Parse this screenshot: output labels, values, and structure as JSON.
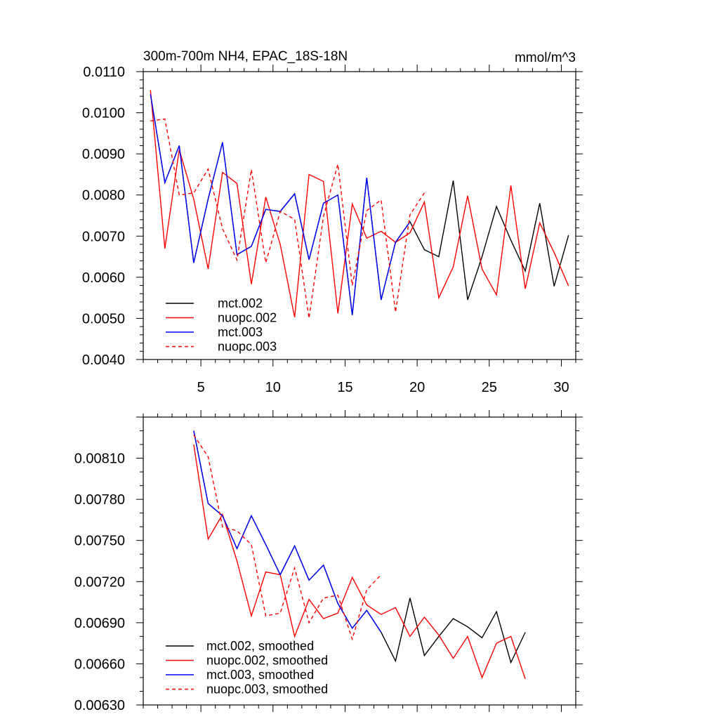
{
  "chart_data": [
    {
      "type": "line",
      "title": "300m-700m NH4, EPAC_18S-18N",
      "units": "mmol/m^3",
      "xlabel": "",
      "ylabel": "",
      "xlim": [
        1,
        31
      ],
      "ylim": [
        0.004,
        0.011
      ],
      "x_major_ticks": [
        5,
        10,
        15,
        20,
        25,
        30
      ],
      "y_major_ticks": [
        0.004,
        0.005,
        0.006,
        0.007,
        0.008,
        0.009,
        0.01,
        0.011
      ],
      "y_tick_labels": [
        "0.0040",
        "0.0050",
        "0.0060",
        "0.0070",
        "0.0080",
        "0.0090",
        "0.0100",
        "0.0110"
      ],
      "x_tick_labels": [
        "5",
        "10",
        "15",
        "20",
        "25",
        "30"
      ],
      "legend_position": "bottom-left",
      "series": [
        {
          "name": "mct.002",
          "color": "#000000",
          "dash": "solid",
          "x": [
            1.5,
            2.5,
            3.5,
            4.5,
            5.5,
            6.5,
            7.5,
            8.5,
            9.5,
            10.5,
            11.5,
            12.5,
            13.5,
            14.5,
            15.5,
            16.5,
            17.5,
            18.5,
            19.5,
            20.5,
            21.5,
            22.5,
            23.5,
            24.5,
            25.5,
            26.5,
            27.5,
            28.5,
            29.5,
            30.5
          ],
          "values": [
            0.01045,
            0.0083,
            0.0092,
            0.00635,
            0.0079,
            0.00928,
            0.00655,
            0.00675,
            0.00765,
            0.0076,
            0.00803,
            0.00643,
            0.0078,
            0.008,
            0.00508,
            0.00842,
            0.00545,
            0.00685,
            0.00735,
            0.00667,
            0.0065,
            0.00835,
            0.00545,
            0.0065,
            0.00772,
            0.0069,
            0.00615,
            0.0078,
            0.00578,
            0.00702
          ]
        },
        {
          "name": "nuopc.002",
          "color": "#ff0000",
          "dash": "solid",
          "x": [
            1.5,
            2.5,
            3.5,
            4.5,
            5.5,
            6.5,
            7.5,
            8.5,
            9.5,
            10.5,
            11.5,
            12.5,
            13.5,
            14.5,
            15.5,
            16.5,
            17.5,
            18.5,
            19.5,
            20.5,
            21.5,
            22.5,
            23.5,
            24.5,
            25.5,
            26.5,
            27.5,
            28.5,
            29.5,
            30.5
          ],
          "values": [
            0.01055,
            0.0067,
            0.0091,
            0.0079,
            0.0062,
            0.00855,
            0.00828,
            0.00583,
            0.00795,
            0.0068,
            0.00503,
            0.0085,
            0.00833,
            0.00512,
            0.00778,
            0.00695,
            0.00712,
            0.00685,
            0.00708,
            0.00783,
            0.0055,
            0.00625,
            0.00798,
            0.0062,
            0.00557,
            0.00823,
            0.00572,
            0.00732,
            0.0066,
            0.00579
          ]
        },
        {
          "name": "mct.003",
          "color": "#0000ff",
          "dash": "solid",
          "x": [
            1.5,
            2.5,
            3.5,
            4.5,
            5.5,
            6.5,
            7.5,
            8.5,
            9.5,
            10.5,
            11.5,
            12.5,
            13.5,
            14.5,
            15.5,
            16.5,
            17.5,
            18.5,
            19.5
          ],
          "values": [
            0.01045,
            0.0083,
            0.0092,
            0.00635,
            0.0079,
            0.00928,
            0.00655,
            0.00675,
            0.00765,
            0.0076,
            0.00803,
            0.00643,
            0.0078,
            0.008,
            0.00508,
            0.00842,
            0.00545,
            0.00685,
            0.00735
          ]
        },
        {
          "name": "nuopc.003",
          "color": "#ff0000",
          "dash": "dashed",
          "x": [
            1.5,
            2.5,
            3.5,
            4.5,
            5.5,
            6.5,
            7.5,
            8.5,
            9.5,
            10.5,
            11.5,
            12.5,
            13.5,
            14.5,
            15.5,
            16.5,
            17.5,
            18.5,
            19.5,
            20.5
          ],
          "values": [
            0.0098,
            0.00985,
            0.008,
            0.00805,
            0.00863,
            0.00718,
            0.00642,
            0.00862,
            0.00635,
            0.0076,
            0.00741,
            0.005,
            0.00748,
            0.00875,
            0.0058,
            0.00762,
            0.00788,
            0.00515,
            0.00752,
            0.00805
          ]
        }
      ]
    },
    {
      "type": "line",
      "title": "",
      "xlabel": "",
      "ylabel": "",
      "xlim": [
        1,
        31
      ],
      "ylim": [
        0.0063,
        0.0084
      ],
      "x_major_ticks": [
        5,
        10,
        15,
        20,
        25,
        30
      ],
      "y_major_ticks": [
        0.0063,
        0.0066,
        0.0069,
        0.0072,
        0.0075,
        0.0078,
        0.0081
      ],
      "y_tick_labels": [
        "0.00630",
        "0.00660",
        "0.00690",
        "0.00720",
        "0.00750",
        "0.00780",
        "0.00810"
      ],
      "legend_position": "bottom-left",
      "series": [
        {
          "name": "mct.002, smoothed",
          "color": "#000000",
          "dash": "solid",
          "x": [
            4.5,
            5.5,
            6.5,
            7.5,
            8.5,
            9.5,
            10.5,
            11.5,
            12.5,
            13.5,
            14.5,
            15.5,
            16.5,
            17.5,
            18.5,
            19.5,
            20.5,
            21.5,
            22.5,
            23.5,
            24.5,
            25.5,
            26.5,
            27.5
          ],
          "values": [
            0.0083,
            0.00777,
            0.00768,
            0.00744,
            0.00768,
            0.00747,
            0.00725,
            0.00746,
            0.00721,
            0.00732,
            0.00704,
            0.00686,
            0.00699,
            0.00683,
            0.00662,
            0.00708,
            0.00666,
            0.0068,
            0.00693,
            0.00687,
            0.00679,
            0.00698,
            0.00661,
            0.00683
          ]
        },
        {
          "name": "nuopc.002, smoothed",
          "color": "#ff0000",
          "dash": "solid",
          "x": [
            4.5,
            5.5,
            6.5,
            7.5,
            8.5,
            9.5,
            10.5,
            11.5,
            12.5,
            13.5,
            14.5,
            15.5,
            16.5,
            17.5,
            18.5,
            19.5,
            20.5,
            21.5,
            22.5,
            23.5,
            24.5,
            25.5,
            26.5,
            27.5
          ],
          "values": [
            0.0082,
            0.00751,
            0.00769,
            0.00735,
            0.00695,
            0.00727,
            0.00725,
            0.0068,
            0.00707,
            0.00693,
            0.00697,
            0.00723,
            0.00703,
            0.00696,
            0.00701,
            0.0068,
            0.00694,
            0.00681,
            0.00664,
            0.0068,
            0.0065,
            0.00675,
            0.0068,
            0.00649
          ]
        },
        {
          "name": "mct.003, smoothed",
          "color": "#0000ff",
          "dash": "solid",
          "x": [
            4.5,
            5.5,
            6.5,
            7.5,
            8.5,
            9.5,
            10.5,
            11.5,
            12.5,
            13.5,
            14.5,
            15.5,
            16.5,
            17.5
          ],
          "values": [
            0.0083,
            0.00777,
            0.00768,
            0.00744,
            0.00768,
            0.00747,
            0.00725,
            0.00746,
            0.00721,
            0.00732,
            0.00704,
            0.00686,
            0.00699,
            0.00683
          ]
        },
        {
          "name": "nuopc.003, smoothed",
          "color": "#ff0000",
          "dash": "dashed",
          "x": [
            4.5,
            5.5,
            6.5,
            7.5,
            8.5,
            9.5,
            10.5,
            11.5,
            12.5,
            13.5,
            14.5,
            15.5,
            16.5,
            17.5
          ],
          "values": [
            0.00827,
            0.00811,
            0.0076,
            0.00757,
            0.00747,
            0.00695,
            0.00697,
            0.0073,
            0.0069,
            0.00708,
            0.0071,
            0.00678,
            0.00714,
            0.00725
          ]
        }
      ]
    }
  ]
}
